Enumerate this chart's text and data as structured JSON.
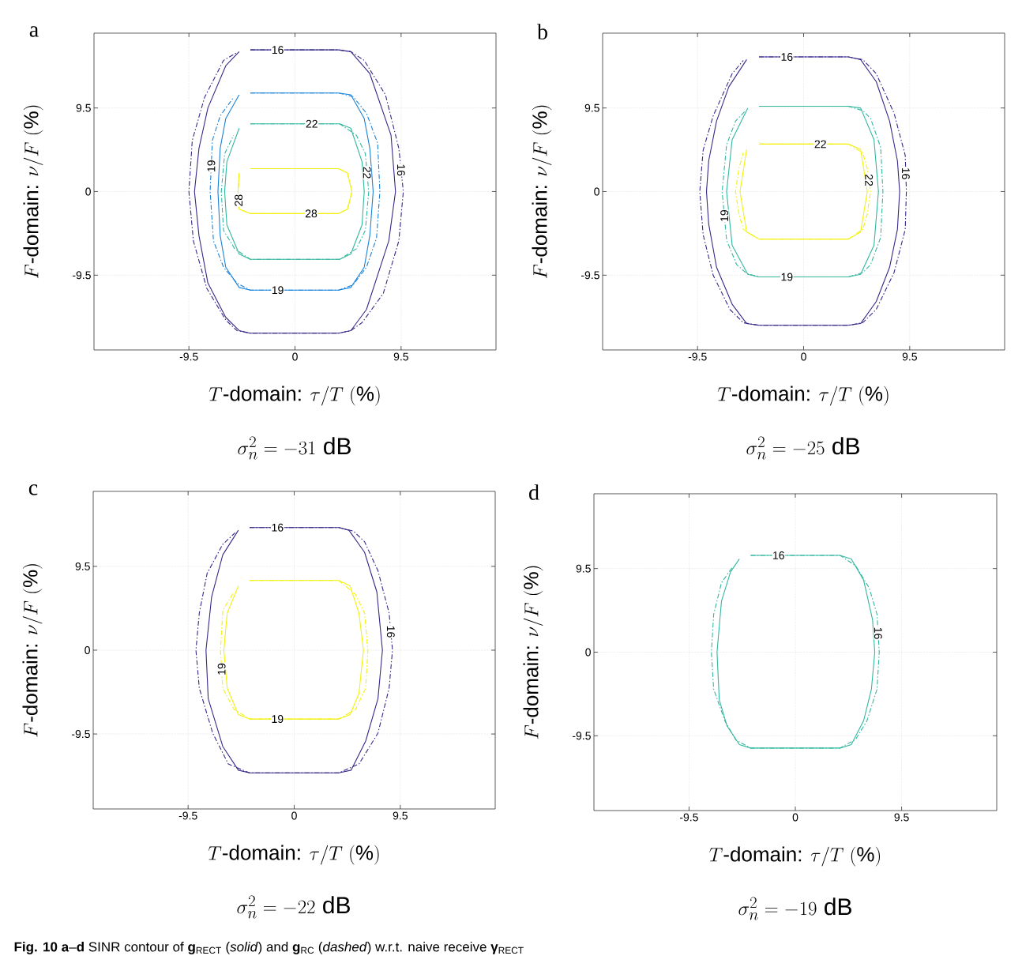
{
  "chart_data": [
    {
      "type": "line",
      "title": "a",
      "xlabel": "T\\text{-domain: }\\tau/T\\ (\\%)",
      "ylabel": "F\\text{-domain: }\\nu/F\\ (\\%)",
      "annotations": [
        "\\sigma_n^2 = -31\\ \\mathrm{dB}"
      ],
      "xlim": [
        -18,
        18
      ],
      "ylim": [
        -18,
        18
      ],
      "xticks": [
        -9.5,
        0,
        9.5
      ],
      "yticks": [
        -9.5,
        0,
        9.5
      ],
      "grid": true,
      "series": [
        {
          "name": "16",
          "color": "#352a87",
          "line_style": "solid",
          "x": [
            -4,
            3.9,
            5,
            6.7,
            8.6,
            9.0,
            8.4,
            6.4,
            5,
            3.9,
            -4,
            -5,
            -6.2,
            -7.8,
            -8.6,
            -9.0,
            -8.6,
            -7.8,
            -6.2,
            -5
          ],
          "values": [
            16.1,
            16.1,
            15.9,
            13.4,
            6.4,
            0,
            -5.6,
            -13.4,
            -15.8,
            -16.1,
            -16.1,
            -15.8,
            -14.3,
            -10.4,
            -5,
            0,
            4.9,
            9.5,
            14.3,
            15.9
          ]
        },
        {
          "name": "16",
          "color": "#352a87",
          "line_style": "dashed",
          "x": [
            -4,
            3.9,
            5,
            6.2,
            8.1,
            9.3,
            9.7,
            9.3,
            7.9,
            6,
            5,
            3.9,
            -4,
            -5.2,
            -6.2,
            -7.9,
            -9.1,
            -9.5,
            -9.2,
            -8.1,
            -6.4,
            -5.2
          ],
          "values": [
            16.1,
            16.1,
            15.9,
            14.9,
            11,
            4.9,
            0,
            -5.6,
            -11.6,
            -14.9,
            -15.8,
            -16.1,
            -16.1,
            -15.8,
            -14.6,
            -11,
            -5.6,
            0,
            5.8,
            10.7,
            14.9,
            15.8
          ]
        },
        {
          "name": "19",
          "color": "#1b82d8",
          "line_style": "solid",
          "x": [
            -4,
            3.9,
            5,
            6.2,
            6.7,
            7.0,
            6.7,
            6.2,
            5,
            3.9,
            -4,
            -5,
            -6.2,
            -6.7,
            -6.9,
            -6.7,
            -6.2,
            -5
          ],
          "values": [
            11.2,
            11.2,
            11,
            8.3,
            4.9,
            0,
            -5,
            -8.6,
            -10.9,
            -11.2,
            -11.2,
            -10.9,
            -8.6,
            -5,
            0,
            4.9,
            8.3,
            11
          ]
        },
        {
          "name": "19",
          "color": "#1b82d8",
          "line_style": "dashed",
          "x": [
            -4,
            3.9,
            5.2,
            6.4,
            7.4,
            7.6,
            7.3,
            6.4,
            5.2,
            3.9,
            -4,
            -5.2,
            -6.4,
            -7.3,
            -7.6,
            -7.4,
            -6.7,
            -5.5
          ],
          "values": [
            11.2,
            11.2,
            10.8,
            8.9,
            5.5,
            0,
            -5.3,
            -8.6,
            -10.6,
            -11.2,
            -11.2,
            -10.4,
            -8.6,
            -5.6,
            0,
            5.8,
            8.6,
            10.7
          ]
        },
        {
          "name": "22",
          "color": "#33b79f",
          "line_style": "solid",
          "x": [
            -4,
            4,
            5,
            6,
            6.2,
            6,
            5,
            4,
            -4,
            -5,
            -6.1,
            -6.3,
            -6.1,
            -5
          ],
          "values": [
            7.7,
            7.7,
            7.2,
            3.4,
            0,
            -3.8,
            -7.1,
            -7.7,
            -7.7,
            -7.1,
            -3.8,
            0,
            3.4,
            7.2
          ]
        },
        {
          "name": "22",
          "color": "#33b79f",
          "line_style": "dashed",
          "x": [
            -4,
            4,
            5.5,
            6.3,
            6.6,
            6.3,
            5.5,
            4,
            -4,
            -5.4,
            -6.4,
            -6.6,
            -6.3,
            -5.5
          ],
          "values": [
            7.7,
            7.7,
            6.4,
            4.3,
            0,
            -4.4,
            -6.5,
            -7.7,
            -7.7,
            -6.5,
            -4.4,
            0,
            4.3,
            6.4
          ]
        },
        {
          "name": "28",
          "color": "#f2f20e",
          "line_style": "solid",
          "x": [
            -4,
            3.9,
            4.7,
            5.1,
            4.7,
            3.9,
            -4,
            -5,
            -5.1,
            -5
          ],
          "values": [
            2.6,
            2.6,
            2.1,
            0,
            -2,
            -2.5,
            -2.5,
            -2,
            0,
            2.1
          ]
        },
        {
          "name": "28",
          "color": "#f2f20e",
          "line_style": "dashed",
          "x": [
            -4,
            3.9,
            4.7,
            5.1,
            4.7,
            3.9,
            -4,
            -5,
            -5.1,
            -5
          ],
          "values": [
            2.6,
            2.6,
            2.1,
            0,
            -2,
            -2.5,
            -2.5,
            -2,
            0,
            2.1
          ]
        }
      ]
    },
    {
      "type": "line",
      "title": "b",
      "xlabel": "T\\text{-domain: }\\tau/T\\ (\\%)",
      "ylabel": "F\\text{-domain: }\\nu/F\\ (\\%)",
      "annotations": [
        "\\sigma_n^2 = -25\\ \\mathrm{dB}"
      ],
      "xlim": [
        -18,
        18
      ],
      "ylim": [
        -18,
        18
      ],
      "xticks": [
        -9.5,
        0,
        9.5
      ],
      "yticks": [
        -9.5,
        0,
        9.5
      ],
      "grid": true,
      "series": [
        {
          "name": "16",
          "color": "#352a87",
          "line_style": "solid",
          "x": [
            -4,
            4,
            5.1,
            6.5,
            7.7,
            8.4,
            8.6,
            8.4,
            7.7,
            6.5,
            5.1,
            4,
            -4,
            -5.1,
            -6.4,
            -7.8,
            -8.5,
            -8.7,
            -8.5,
            -7.8,
            -6.7,
            -5.1
          ],
          "values": [
            15.3,
            15.3,
            15,
            12.5,
            8,
            3.5,
            0,
            -4.3,
            -8.6,
            -12.5,
            -15,
            -15.2,
            -15.2,
            -15,
            -12.8,
            -8.6,
            -3.7,
            0,
            3.5,
            8,
            11.9,
            15
          ]
        },
        {
          "name": "16",
          "color": "#352a87",
          "line_style": "dashed",
          "x": [
            -4,
            4,
            5.3,
            6.5,
            8.1,
            9.1,
            9.2,
            9.1,
            8.1,
            6.5,
            5.3,
            4,
            -4,
            -5.4,
            -6.6,
            -8.1,
            -9,
            -9.3,
            -9,
            -8.1,
            -6.4,
            -5.4
          ],
          "values": [
            15.3,
            15.3,
            15,
            13.4,
            8.9,
            4.1,
            0,
            -4.3,
            -9.2,
            -13.4,
            -14.9,
            -15.2,
            -15.2,
            -14.9,
            -13.4,
            -9.5,
            -4.9,
            0,
            4.7,
            8.6,
            13.4,
            14.9
          ]
        },
        {
          "name": "19",
          "color": "#33b79f",
          "line_style": "solid",
          "x": [
            -4,
            4,
            5.1,
            6.3,
            6.7,
            6.3,
            5.1,
            4,
            -4,
            -5,
            -6.4,
            -6.9,
            -6.4,
            -5
          ],
          "values": [
            9.7,
            9.7,
            9.5,
            5.9,
            0,
            -6.1,
            -9.4,
            -9.7,
            -9.7,
            -9.4,
            -6.1,
            0,
            5.9,
            9.5
          ]
        },
        {
          "name": "19",
          "color": "#33b79f",
          "line_style": "dashed",
          "x": [
            -4,
            4,
            5.3,
            6,
            6.9,
            7.1,
            6.9,
            6,
            5.3,
            4,
            -4,
            -5.1,
            -6,
            -6.9,
            -7.3,
            -6.9,
            -6.1,
            -5.2
          ],
          "values": [
            9.7,
            9.7,
            9.2,
            8.3,
            5,
            0,
            -5.2,
            -8.3,
            -9.2,
            -9.7,
            -9.7,
            -9.3,
            -8.3,
            -5.5,
            0,
            5.3,
            8,
            9.2
          ]
        },
        {
          "name": "22",
          "color": "#f2f20e",
          "line_style": "solid",
          "x": [
            -4,
            4,
            5.1,
            5.7,
            5.1,
            4,
            -4,
            -5.1,
            -5.7,
            -5.1
          ],
          "values": [
            5.4,
            5.4,
            4.8,
            0,
            -4.6,
            -5.4,
            -5.4,
            -4.6,
            0,
            4.8
          ]
        },
        {
          "name": "22",
          "color": "#f2f20e",
          "line_style": "dashed",
          "x": [
            -4,
            4,
            5.3,
            5.7,
            6,
            5.7,
            5.3,
            4,
            -4,
            -5.4,
            -5.8,
            -6.1,
            -5.8,
            -5.4
          ],
          "values": [
            5.4,
            5.4,
            4.4,
            2.6,
            0,
            -2.5,
            -4.3,
            -5.4,
            -5.4,
            -4.3,
            -2.5,
            0,
            2.6,
            4.4
          ]
        }
      ]
    },
    {
      "type": "line",
      "title": "c",
      "xlabel": "T\\text{-domain: }\\tau/T\\ (\\%)",
      "ylabel": "F\\text{-domain: }\\nu/F\\ (\\%)",
      "annotations": [
        "\\sigma_n^2 = -22\\ \\mathrm{dB}"
      ],
      "xlim": [
        -18,
        18
      ],
      "ylim": [
        -18,
        18
      ],
      "xticks": [
        -9.5,
        0,
        9.5
      ],
      "yticks": [
        -9.5,
        0,
        9.5
      ],
      "grid": true,
      "series": [
        {
          "name": "16",
          "color": "#352a87",
          "line_style": "solid",
          "x": [
            -4,
            4,
            4.9,
            6.3,
            7.4,
            7.9,
            7.5,
            6.4,
            5.1,
            4,
            -4,
            -5,
            -6.4,
            -7.7,
            -7.9,
            -7.4,
            -6.4,
            -5
          ],
          "values": [
            13.9,
            13.9,
            13.6,
            11.1,
            6.6,
            0,
            -5.5,
            -10.3,
            -13.6,
            -13.9,
            -13.9,
            -13.6,
            -10.9,
            -5.5,
            0,
            6,
            10.8,
            13.6
          ]
        },
        {
          "name": "16",
          "color": "#352a87",
          "line_style": "dashed",
          "x": [
            -4,
            4,
            5.3,
            6.3,
            7.5,
            8.5,
            8.8,
            8.5,
            7.5,
            5.8,
            4,
            -4,
            -5.9,
            -7.3,
            -8.5,
            -8.8,
            -8.5,
            -7.8,
            -6.4,
            -5.3
          ],
          "values": [
            13.9,
            13.9,
            13.5,
            12.3,
            9,
            4.2,
            0,
            -4.3,
            -9.4,
            -12.9,
            -13.9,
            -13.9,
            -12.9,
            -9.4,
            -4.3,
            0,
            4.2,
            8.7,
            12,
            13.3
          ]
        },
        {
          "name": "19",
          "color": "#f2f20e",
          "line_style": "solid",
          "x": [
            -4,
            4,
            5,
            5.8,
            6.2,
            5.8,
            5,
            4,
            -4,
            -5,
            -6,
            -6.3,
            -6,
            -5
          ],
          "values": [
            7.9,
            7.9,
            7.3,
            4.2,
            0,
            -4.9,
            -7.3,
            -7.8,
            -7.8,
            -7.3,
            -4.3,
            0,
            4.2,
            7.3
          ]
        },
        {
          "name": "19",
          "color": "#f2f20e",
          "line_style": "dashed",
          "x": [
            -4,
            4,
            5.5,
            6.3,
            6.6,
            6.4,
            5.5,
            4,
            -4,
            -5.4,
            -6.4,
            -6.6,
            -6.4,
            -5.4
          ],
          "values": [
            7.9,
            7.9,
            6.3,
            4.2,
            0,
            -4.3,
            -6.7,
            -7.8,
            -7.8,
            -6.7,
            -4.3,
            0,
            4.5,
            6.6
          ]
        }
      ]
    },
    {
      "type": "line",
      "title": "d",
      "xlabel": "T\\text{-domain: }\\tau/T\\ (\\%)",
      "ylabel": "F\\text{-domain: }\\nu/F\\ (\\%)",
      "annotations": [
        "\\sigma_n^2 = -19\\ \\mathrm{dB}"
      ],
      "xlim": [
        -18,
        18
      ],
      "ylim": [
        -18,
        18
      ],
      "xticks": [
        -9.5,
        0,
        9.5
      ],
      "yticks": [
        -9.5,
        0,
        9.5
      ],
      "grid": true,
      "series": [
        {
          "name": "16",
          "color": "#33b79f",
          "line_style": "solid",
          "x": [
            -4,
            4,
            5,
            6.1,
            6.9,
            7.1,
            6.8,
            6.1,
            5,
            4,
            -4,
            -5,
            -6.1,
            -6.8,
            -7,
            -6.6,
            -5.8,
            -5
          ],
          "values": [
            11,
            11,
            10.6,
            8.2,
            3.7,
            0,
            -4.2,
            -7.8,
            -10.5,
            -10.9,
            -10.9,
            -10.5,
            -8.4,
            -5.4,
            0,
            5.8,
            9.1,
            10.6
          ]
        },
        {
          "name": "16",
          "color": "#33b79f",
          "line_style": "dashed",
          "x": [
            -4,
            4,
            5.4,
            6.6,
            7.3,
            7.5,
            7.3,
            6.4,
            5.4,
            4,
            -4,
            -5.3,
            -6.3,
            -7.3,
            -7.5,
            -7.3,
            -6.6,
            -5.6
          ],
          "values": [
            11,
            11,
            9.8,
            7.3,
            4.3,
            0,
            -4.2,
            -7.8,
            -9.9,
            -10.9,
            -10.9,
            -10,
            -7.8,
            -4.2,
            0,
            4.3,
            7.9,
            9.7
          ]
        }
      ]
    },
    {
      "type": "other",
      "annotations": [
        "**Fig. 10 a**–**d** SINR contour of **g**$_{RECT}$ (*solid*) and **g**$_{RC}$ (*dashed*) w.r.t. naive receive **γ**$_{RECT}$"
      ]
    }
  ]
}
